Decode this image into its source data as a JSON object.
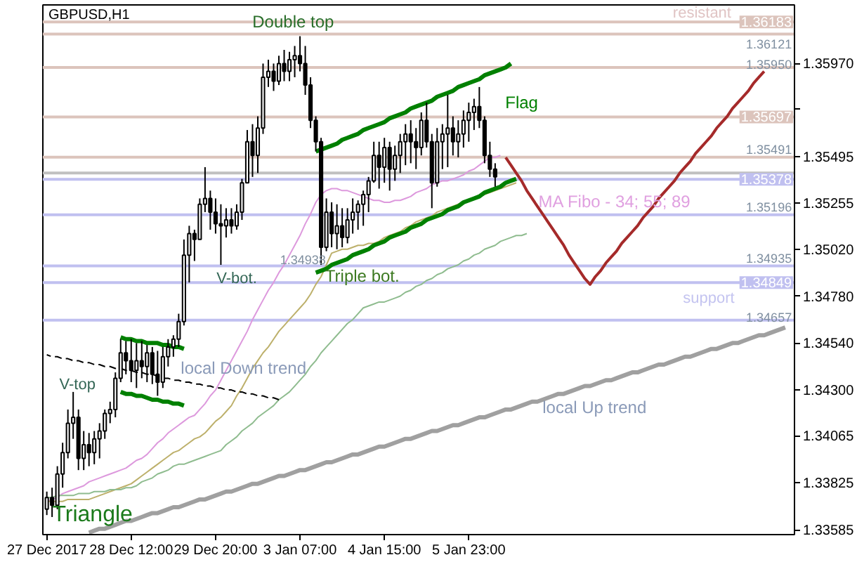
{
  "chart_data": {
    "type": "candlestick",
    "title": "GBPUSD,H1",
    "color": "#000000",
    "categories": [
      "27 Dec 2017",
      null,
      null,
      null,
      null,
      null,
      null,
      null,
      null,
      null,
      null,
      null,
      null,
      null,
      null,
      null,
      "28 Dec 12:00",
      null,
      null,
      null,
      null,
      null,
      null,
      null,
      null,
      null,
      null,
      null,
      null,
      null,
      null,
      null,
      "29 Dec 20:00",
      null,
      null,
      null,
      null,
      null,
      null,
      null,
      null,
      null,
      null,
      null,
      null,
      null,
      null,
      null,
      "3 Jan 07:00",
      null,
      null,
      null,
      null,
      null,
      null,
      null,
      null,
      null,
      null,
      null,
      null,
      null,
      null,
      null,
      "4 Jan 15:00",
      null,
      null,
      null,
      null,
      null,
      null,
      null,
      null,
      null,
      null,
      null,
      null,
      null,
      null,
      null,
      "5 Jan 23:00",
      null,
      null,
      null,
      null,
      null,
      null,
      null,
      null,
      null,
      null,
      null,
      null,
      null,
      null,
      null,
      null,
      null,
      null,
      null,
      null,
      null,
      null,
      null,
      null,
      null,
      null,
      null,
      null,
      null,
      null,
      null,
      null,
      null,
      null,
      null,
      null,
      null,
      null,
      null,
      null,
      null,
      null,
      null,
      null,
      null,
      null,
      null,
      null,
      null,
      null,
      null,
      null,
      null,
      null,
      null,
      null,
      null,
      null,
      null,
      null,
      null
    ],
    "ohlc": [
      [
        1.3369,
        1.3378,
        1.3366,
        1.3375
      ],
      [
        1.3375,
        1.338,
        1.3365,
        1.3371
      ],
      [
        1.3371,
        1.3391,
        1.3369,
        1.3387
      ],
      [
        1.3387,
        1.3403,
        1.338,
        1.3398
      ],
      [
        1.3398,
        1.342,
        1.3395,
        1.3413
      ],
      [
        1.3413,
        1.3429,
        1.3405,
        1.3416
      ],
      [
        1.3416,
        1.342,
        1.3389,
        1.3395
      ],
      [
        1.3395,
        1.3409,
        1.3389,
        1.3402
      ],
      [
        1.3402,
        1.3408,
        1.3391,
        1.3398
      ],
      [
        1.3398,
        1.3409,
        1.3392,
        1.3405
      ],
      [
        1.3405,
        1.3413,
        1.3395,
        1.3409
      ],
      [
        1.3409,
        1.342,
        1.3405,
        1.3418
      ],
      [
        1.3418,
        1.3424,
        1.3413,
        1.342
      ],
      [
        1.342,
        1.3439,
        1.3416,
        1.3436
      ],
      [
        1.3436,
        1.3456,
        1.3434,
        1.3449
      ],
      [
        1.3449,
        1.3455,
        1.3438,
        1.3445
      ],
      [
        1.3445,
        1.3456,
        1.3434,
        1.344
      ],
      [
        1.344,
        1.3454,
        1.3431,
        1.3445
      ],
      [
        1.3445,
        1.3455,
        1.3436,
        1.3442
      ],
      [
        1.3442,
        1.3453,
        1.3434,
        1.3449
      ],
      [
        1.3449,
        1.3452,
        1.3433,
        1.3438
      ],
      [
        1.3438,
        1.345,
        1.3427,
        1.3434
      ],
      [
        1.3434,
        1.3452,
        1.3431,
        1.3447
      ],
      [
        1.3447,
        1.3456,
        1.3442,
        1.3452
      ],
      [
        1.3452,
        1.3458,
        1.3447,
        1.3456
      ],
      [
        1.3456,
        1.3469,
        1.3452,
        1.3465
      ],
      [
        1.3465,
        1.3507,
        1.3463,
        1.3499
      ],
      [
        1.3499,
        1.3514,
        1.3485,
        1.351
      ],
      [
        1.351,
        1.3512,
        1.3496,
        1.3507
      ],
      [
        1.3507,
        1.3528,
        1.3507,
        1.3525
      ],
      [
        1.3525,
        1.3544,
        1.3521,
        1.3528
      ],
      [
        1.3528,
        1.3532,
        1.3512,
        1.3521
      ],
      [
        1.3521,
        1.3528,
        1.351,
        1.3515
      ],
      [
        1.3515,
        1.3525,
        1.3494,
        1.3514
      ],
      [
        1.3514,
        1.3523,
        1.3508,
        1.3517
      ],
      [
        1.3517,
        1.3523,
        1.351,
        1.3514
      ],
      [
        1.3514,
        1.3525,
        1.3512,
        1.3521
      ],
      [
        1.3521,
        1.3538,
        1.3517,
        1.3536
      ],
      [
        1.3536,
        1.3563,
        1.3536,
        1.3557
      ],
      [
        1.3557,
        1.3566,
        1.3539,
        1.355
      ],
      [
        1.355,
        1.357,
        1.3541,
        1.3564
      ],
      [
        1.3564,
        1.3597,
        1.3561,
        1.359
      ],
      [
        1.359,
        1.3599,
        1.3585,
        1.3593
      ],
      [
        1.3593,
        1.3597,
        1.3583,
        1.3588
      ],
      [
        1.3588,
        1.3601,
        1.3586,
        1.3597
      ],
      [
        1.3597,
        1.3604,
        1.3588,
        1.3593
      ],
      [
        1.3593,
        1.3603,
        1.3588,
        1.3599
      ],
      [
        1.3599,
        1.3606,
        1.359,
        1.3601
      ],
      [
        1.3601,
        1.3611,
        1.3593,
        1.3597
      ],
      [
        1.3597,
        1.3606,
        1.3581,
        1.3586
      ],
      [
        1.3586,
        1.359,
        1.3564,
        1.3568
      ],
      [
        1.3568,
        1.357,
        1.3552,
        1.3557
      ],
      [
        1.3557,
        1.3559,
        1.3494,
        1.3503
      ],
      [
        1.3503,
        1.3528,
        1.3501,
        1.3521
      ],
      [
        1.3521,
        1.3526,
        1.3503,
        1.351
      ],
      [
        1.351,
        1.3525,
        1.3502,
        1.3514
      ],
      [
        1.3514,
        1.3523,
        1.3503,
        1.3508
      ],
      [
        1.3508,
        1.3523,
        1.3505,
        1.3517
      ],
      [
        1.3517,
        1.3528,
        1.351,
        1.3521
      ],
      [
        1.3521,
        1.3527,
        1.3512,
        1.3525
      ],
      [
        1.3525,
        1.3532,
        1.3514,
        1.353
      ],
      [
        1.353,
        1.3539,
        1.3521,
        1.3537
      ],
      [
        1.3537,
        1.3557,
        1.3536,
        1.355
      ],
      [
        1.355,
        1.3557,
        1.3533,
        1.3544
      ],
      [
        1.3544,
        1.3559,
        1.3536,
        1.3554
      ],
      [
        1.3554,
        1.3557,
        1.3532,
        1.3543
      ],
      [
        1.3543,
        1.3555,
        1.3537,
        1.355
      ],
      [
        1.355,
        1.3561,
        1.3541,
        1.3557
      ],
      [
        1.3557,
        1.3566,
        1.3545,
        1.3561
      ],
      [
        1.3561,
        1.3568,
        1.3546,
        1.3557
      ],
      [
        1.3557,
        1.3564,
        1.3543,
        1.3554
      ],
      [
        1.3554,
        1.3572,
        1.355,
        1.3568
      ],
      [
        1.3568,
        1.3577,
        1.3554,
        1.3557
      ],
      [
        1.3557,
        1.3561,
        1.3523,
        1.3536
      ],
      [
        1.3536,
        1.3564,
        1.3534,
        1.3557
      ],
      [
        1.3557,
        1.3566,
        1.3543,
        1.3561
      ],
      [
        1.3561,
        1.3581,
        1.3544,
        1.3564
      ],
      [
        1.3564,
        1.357,
        1.355,
        1.3557
      ],
      [
        1.3557,
        1.3568,
        1.3549,
        1.3561
      ],
      [
        1.3561,
        1.3573,
        1.3554,
        1.3568
      ],
      [
        1.3568,
        1.3577,
        1.3557,
        1.3572
      ],
      [
        1.3572,
        1.3579,
        1.3563,
        1.3575
      ],
      [
        1.3575,
        1.3585,
        1.3564,
        1.3568
      ],
      [
        1.3568,
        1.357,
        1.3546,
        1.355
      ],
      [
        1.355,
        1.3557,
        1.3539,
        1.3543
      ],
      [
        1.3543,
        1.3546,
        1.3534,
        1.3539
      ],
      null,
      null,
      null,
      null,
      null,
      null,
      null,
      null,
      null,
      null,
      null,
      null,
      null,
      null,
      null,
      null,
      null,
      null,
      null,
      null,
      null,
      null,
      null,
      null,
      null,
      null,
      null,
      null,
      null,
      null,
      null,
      null,
      null,
      null,
      null,
      null,
      null,
      null,
      null,
      null,
      null,
      null,
      null,
      null,
      null,
      null,
      null,
      null,
      null,
      null,
      null,
      null,
      null,
      null,
      null,
      null
    ],
    "series": [
      {
        "type": "line",
        "color": "#dd99dd",
        "values": [
          1.3373,
          1.3374,
          1.3375,
          1.3377,
          1.3378,
          1.3379,
          1.338,
          1.3381,
          1.3383,
          1.3384,
          1.3385,
          1.3386,
          1.3387,
          1.3388,
          1.3389,
          1.339,
          1.3392,
          1.3394,
          1.3395,
          1.3397,
          1.34,
          1.3403,
          1.3405,
          1.3408,
          1.341,
          1.3412,
          1.3414,
          1.3416,
          1.3417,
          1.342,
          1.3423,
          1.3427,
          1.343,
          1.3435,
          1.344,
          1.3445,
          1.345,
          1.3455,
          1.346,
          1.3466,
          1.3471,
          1.3476,
          1.3481,
          1.3485,
          1.349,
          1.3494,
          1.3499,
          1.3504,
          1.3509,
          1.3515,
          1.352,
          1.3526,
          1.353,
          1.3532,
          1.3533,
          1.3533,
          1.3532,
          1.3532,
          1.3531,
          1.353,
          1.3529,
          1.3528,
          1.3527,
          1.3527,
          1.3526,
          1.3526,
          1.3527,
          1.3527,
          1.3528,
          1.3529,
          1.3531,
          1.3532,
          1.3533,
          1.3535,
          1.3536,
          1.3537,
          1.3537,
          1.3538,
          1.3539,
          1.354,
          1.3542,
          1.3543,
          1.3545,
          1.3547,
          1.3549,
          1.3549,
          1.355,
          null,
          null,
          null,
          null,
          null,
          null,
          null,
          null,
          null,
          null,
          null,
          null,
          null,
          null,
          null,
          null,
          null,
          null,
          null,
          null,
          null,
          null,
          null,
          null,
          null,
          null,
          null,
          null,
          null,
          null,
          null,
          null,
          null,
          null,
          null,
          null,
          null,
          null,
          null,
          null,
          null,
          null,
          null,
          null,
          null,
          null,
          null,
          null,
          null,
          null,
          null,
          null,
          null,
          null,
          null
        ]
      },
      {
        "type": "line",
        "color": "#bdb06b",
        "values": [
          1.3373,
          1.3373,
          1.3373,
          1.3373,
          1.3374,
          1.3374,
          1.3374,
          1.3374,
          1.3374,
          1.3375,
          1.3376,
          1.3377,
          1.3378,
          1.3379,
          1.338,
          1.3381,
          1.3382,
          1.3384,
          1.3386,
          1.3388,
          1.339,
          1.3392,
          1.3394,
          1.3396,
          1.3398,
          1.3399,
          1.3401,
          1.3403,
          1.3405,
          1.3406,
          1.3408,
          1.3411,
          1.3414,
          1.3416,
          1.3419,
          1.3422,
          1.3427,
          1.3431,
          1.3436,
          1.3441,
          1.3445,
          1.3449,
          1.3452,
          1.3456,
          1.346,
          1.3463,
          1.3466,
          1.3469,
          1.3472,
          1.3475,
          1.3479,
          1.3484,
          1.3488,
          1.3494,
          1.35,
          1.3501,
          1.3502,
          1.3502,
          1.3503,
          1.3504,
          1.3504,
          1.3505,
          1.3505,
          1.3506,
          1.3508,
          1.3509,
          1.351,
          1.3511,
          1.3513,
          1.3514,
          1.3516,
          1.3517,
          1.3518,
          1.3519,
          1.3521,
          1.3522,
          1.3523,
          1.3524,
          1.3525,
          1.3526,
          1.3527,
          1.3528,
          1.3529,
          1.353,
          1.3531,
          1.3532,
          1.3533,
          1.3534,
          1.3535,
          1.3536,
          null,
          null,
          null,
          null,
          null,
          null,
          null,
          null,
          null,
          null,
          null,
          null,
          null,
          null,
          null,
          null,
          null,
          null,
          null,
          null,
          null,
          null,
          null,
          null,
          null,
          null,
          null,
          null,
          null,
          null,
          null,
          null,
          null,
          null,
          null,
          null,
          null,
          null,
          null,
          null,
          null,
          null,
          null,
          null,
          null,
          null,
          null,
          null,
          null,
          null,
          null,
          null
        ]
      },
      {
        "type": "line",
        "color": "#8fbc8f",
        "values": [
          1.3375,
          1.3375,
          1.3376,
          1.3376,
          1.3376,
          1.3376,
          1.3377,
          1.3377,
          1.3377,
          1.3378,
          1.3378,
          1.3378,
          1.3379,
          1.3379,
          1.3379,
          1.338,
          1.338,
          1.3381,
          1.3383,
          1.3384,
          1.3385,
          1.3387,
          1.3388,
          1.3389,
          1.3391,
          1.3392,
          1.3392,
          1.3393,
          1.3394,
          1.3395,
          1.3396,
          1.3397,
          1.3398,
          1.3399,
          1.3402,
          1.3404,
          1.3406,
          1.3409,
          1.3411,
          1.3413,
          1.3416,
          1.3418,
          1.342,
          1.3422,
          1.3425,
          1.3427,
          1.3429,
          1.3432,
          1.3435,
          1.3438,
          1.3442,
          1.3445,
          1.3449,
          1.3452,
          1.3455,
          1.3458,
          1.3461,
          1.3464,
          1.3466,
          1.3469,
          1.3472,
          1.3473,
          1.3474,
          1.3475,
          1.3475,
          1.3476,
          1.3477,
          1.3478,
          1.348,
          1.3481,
          1.3483,
          1.3484,
          1.3486,
          1.3487,
          1.3489,
          1.349,
          1.3492,
          1.3493,
          1.3494,
          1.3496,
          1.3497,
          1.3499,
          1.35,
          1.3502,
          1.3503,
          1.3504,
          1.3506,
          1.3507,
          1.3508,
          1.3509,
          1.3509,
          1.351,
          null,
          null,
          null,
          null,
          null,
          null,
          null,
          null,
          null,
          null,
          null,
          null,
          null,
          null,
          null,
          null,
          null,
          null,
          null,
          null,
          null,
          null,
          null,
          null,
          null,
          null,
          null,
          null,
          null,
          null,
          null,
          null,
          null,
          null,
          null,
          null,
          null,
          null,
          null,
          null,
          null,
          null,
          null,
          null,
          null,
          null,
          null,
          null,
          null,
          null
        ]
      },
      {
        "type": "line",
        "color": "#008000",
        "values": [
          null,
          null,
          null,
          null,
          null,
          null,
          null,
          null,
          null,
          null,
          null,
          null,
          null,
          null,
          null,
          null,
          null,
          null,
          null,
          null,
          null,
          null,
          null,
          null,
          null,
          null,
          null,
          null,
          null,
          null,
          null,
          null,
          null,
          null,
          null,
          null,
          null,
          null,
          null,
          null,
          null,
          null,
          null,
          null,
          null,
          null,
          null,
          null,
          null,
          null,
          null,
          1.3552,
          1.3553,
          1.3554,
          1.3555,
          1.3556,
          1.3558,
          1.3559,
          1.356,
          1.3561,
          1.3563,
          1.3564,
          1.3565,
          1.3566,
          1.3567,
          1.3569,
          1.357,
          1.3571,
          1.3572,
          1.3574,
          1.3575,
          1.3576,
          1.3577,
          1.3578,
          1.358,
          1.3581,
          1.3582,
          1.3583,
          1.3585,
          1.3586,
          1.3587,
          1.3588,
          1.3589,
          1.3591,
          1.3592,
          1.3593,
          1.3594,
          1.3595,
          1.3597,
          null,
          null,
          null,
          null,
          null,
          null,
          null,
          null,
          null,
          null,
          null,
          null,
          null,
          null,
          null,
          null,
          null,
          null,
          null,
          null,
          null,
          null,
          null,
          null,
          null,
          null,
          null,
          null,
          null,
          null,
          null,
          null,
          null,
          null,
          null,
          null,
          null,
          null,
          null,
          null,
          null,
          null,
          null,
          null,
          null,
          null,
          null,
          null,
          null,
          null,
          null,
          null,
          null
        ]
      },
      {
        "type": "line",
        "color": "#008000",
        "values": [
          null,
          null,
          null,
          null,
          null,
          null,
          null,
          null,
          null,
          null,
          null,
          null,
          null,
          null,
          null,
          null,
          null,
          null,
          null,
          null,
          null,
          null,
          null,
          null,
          null,
          null,
          null,
          null,
          null,
          null,
          null,
          null,
          null,
          null,
          null,
          null,
          null,
          null,
          null,
          null,
          null,
          null,
          null,
          null,
          null,
          null,
          null,
          null,
          null,
          null,
          null,
          1.349,
          1.3491,
          1.3492,
          1.3494,
          1.3495,
          1.3496,
          1.3497,
          1.3499,
          1.35,
          1.3501,
          1.3502,
          1.3504,
          1.3505,
          1.3506,
          1.3508,
          1.3509,
          1.351,
          1.3511,
          1.3513,
          1.3514,
          1.3515,
          1.3517,
          1.3518,
          1.3519,
          1.352,
          1.3522,
          1.3523,
          1.3524,
          1.3526,
          1.3527,
          1.3528,
          1.3529,
          1.3531,
          1.3532,
          1.3533,
          1.3534,
          1.3536,
          1.3537,
          1.3538,
          null,
          null,
          null,
          null,
          null,
          null,
          null,
          null,
          null,
          null,
          null,
          null,
          null,
          null,
          null,
          null,
          null,
          null,
          null,
          null,
          null,
          null,
          null,
          null,
          null,
          null,
          null,
          null,
          null,
          null,
          null,
          null,
          null,
          null,
          null,
          null,
          null,
          null,
          null,
          null,
          null,
          null,
          null,
          null,
          null,
          null,
          null,
          null,
          null,
          null,
          null,
          null
        ]
      },
      {
        "type": "line",
        "color": "#008000",
        "values": [
          null,
          null,
          null,
          null,
          null,
          null,
          null,
          null,
          null,
          null,
          null,
          null,
          null,
          null,
          1.3457,
          1.3456,
          1.3456,
          1.3455,
          1.3455,
          1.3454,
          1.3454,
          1.3454,
          1.3453,
          1.3453,
          1.3452,
          1.3452,
          1.3451,
          null,
          null,
          null,
          null,
          null,
          null,
          null,
          null,
          null,
          null,
          null,
          null,
          null,
          null,
          null,
          null,
          null,
          null,
          null,
          null,
          null,
          null,
          null,
          null,
          null,
          null,
          null,
          null,
          null,
          null,
          null,
          null,
          null,
          null,
          null,
          null,
          null,
          null,
          null,
          null,
          null,
          null,
          null,
          null,
          null,
          null,
          null,
          null,
          null,
          null,
          null,
          null,
          null,
          null,
          null,
          null,
          null,
          null,
          null,
          null,
          null,
          null,
          null,
          null,
          null,
          null,
          null,
          null,
          null,
          null,
          null,
          null,
          null,
          null,
          null,
          null,
          null,
          null,
          null,
          null,
          null,
          null,
          null,
          null,
          null,
          null,
          null,
          null,
          null,
          null,
          null,
          null,
          null,
          null,
          null,
          null,
          null,
          null,
          null,
          null,
          null,
          null,
          null,
          null,
          null,
          null,
          null,
          null,
          null,
          null,
          null,
          null,
          null,
          null,
          null
        ]
      },
      {
        "type": "line",
        "color": "#008000",
        "values": [
          null,
          null,
          null,
          null,
          null,
          null,
          null,
          null,
          null,
          null,
          null,
          null,
          null,
          null,
          1.3429,
          1.3428,
          1.3428,
          1.3427,
          1.3427,
          1.3426,
          1.3425,
          1.3425,
          1.3424,
          1.3424,
          1.3423,
          1.3423,
          1.3422,
          null,
          null,
          null,
          null,
          null,
          null,
          null,
          null,
          null,
          null,
          null,
          null,
          null,
          null,
          null,
          null,
          null,
          null,
          null,
          null,
          null,
          null,
          null,
          null,
          null,
          null,
          null,
          null,
          null,
          null,
          null,
          null,
          null,
          null,
          null,
          null,
          null,
          null,
          null,
          null,
          null,
          null,
          null,
          null,
          null,
          null,
          null,
          null,
          null,
          null,
          null,
          null,
          null,
          null,
          null,
          null,
          null,
          null,
          null,
          null,
          null,
          null,
          null,
          null,
          null,
          null,
          null,
          null,
          null,
          null,
          null,
          null,
          null,
          null,
          null,
          null,
          null,
          null,
          null,
          null,
          null,
          null,
          null,
          null,
          null,
          null,
          null,
          null,
          null,
          null,
          null,
          null,
          null,
          null,
          null,
          null,
          null,
          null,
          null,
          null,
          null,
          null,
          null,
          null,
          null,
          null,
          null,
          null,
          null,
          null,
          null,
          null,
          null,
          null,
          null
        ]
      },
      {
        "type": "line",
        "color": "#000000",
        "line_style": "dashed",
        "values": [
          1.3448,
          1.3447,
          1.3447,
          1.3446,
          1.3446,
          1.3445,
          1.3445,
          1.3444,
          1.3444,
          1.3443,
          1.3443,
          1.3442,
          1.3442,
          1.3441,
          1.3441,
          1.344,
          1.344,
          1.3439,
          1.3439,
          1.3438,
          1.3438,
          1.3437,
          1.3436,
          1.3436,
          1.3435,
          1.3435,
          1.3434,
          1.3434,
          1.3433,
          1.3433,
          1.3432,
          1.3432,
          1.3431,
          1.3431,
          1.343,
          1.343,
          1.3429,
          1.3429,
          1.3428,
          1.3428,
          1.3427,
          1.3427,
          1.3426,
          1.3426,
          1.3425,
          null,
          null,
          null,
          null,
          null,
          null,
          null,
          null,
          null,
          null,
          null,
          null,
          null,
          null,
          null,
          null,
          null,
          null,
          null,
          null,
          null,
          null,
          null,
          null,
          null,
          null,
          null,
          null,
          null,
          null,
          null,
          null,
          null,
          null,
          null,
          null,
          null,
          null,
          null,
          null,
          null,
          null,
          null,
          null,
          null,
          null,
          null,
          null,
          null,
          null,
          null,
          null,
          null,
          null,
          null,
          null,
          null,
          null,
          null,
          null,
          null,
          null,
          null,
          null,
          null,
          null,
          null,
          null,
          null,
          null,
          null,
          null,
          null,
          null,
          null,
          null,
          null,
          null,
          null,
          null,
          null,
          null,
          null,
          null,
          null,
          null,
          null,
          null,
          null,
          null,
          null,
          null,
          null,
          null,
          null,
          null,
          null
        ]
      },
      {
        "type": "line",
        "color": "#a0a0a0",
        "values": [
          null,
          null,
          null,
          null,
          null,
          null,
          null,
          null,
          1.3357,
          1.3358,
          1.3359,
          1.3359,
          1.336,
          1.3361,
          1.3362,
          1.3363,
          1.3363,
          1.3364,
          1.3365,
          1.3366,
          1.3367,
          1.3367,
          1.3368,
          1.3369,
          1.337,
          1.337,
          1.3371,
          1.3372,
          1.3373,
          1.3374,
          1.3374,
          1.3375,
          1.3376,
          1.3377,
          1.3378,
          1.3378,
          1.3379,
          1.338,
          1.3381,
          1.3382,
          1.3382,
          1.3383,
          1.3384,
          1.3385,
          1.3386,
          1.3386,
          1.3387,
          1.3388,
          1.3389,
          1.3389,
          1.339,
          1.3391,
          1.3392,
          1.3393,
          1.3393,
          1.3394,
          1.3395,
          1.3396,
          1.3397,
          1.3397,
          1.3398,
          1.3399,
          1.34,
          1.3401,
          1.3401,
          1.3402,
          1.3403,
          1.3404,
          1.3405,
          1.3405,
          1.3406,
          1.3407,
          1.3408,
          1.3409,
          1.3409,
          1.341,
          1.3411,
          1.3412,
          1.3412,
          1.3413,
          1.3414,
          1.3415,
          1.3416,
          1.3416,
          1.3417,
          1.3418,
          1.3419,
          1.342,
          1.342,
          1.3421,
          1.3422,
          1.3423,
          1.3424,
          1.3424,
          1.3425,
          1.3426,
          1.3427,
          1.3428,
          1.3428,
          1.3429,
          1.343,
          1.3431,
          1.3432,
          1.3432,
          1.3433,
          1.3434,
          1.3435,
          1.3435,
          1.3436,
          1.3437,
          1.3438,
          1.3439,
          1.3439,
          1.344,
          1.3441,
          1.3442,
          1.3443,
          1.3443,
          1.3444,
          1.3445,
          1.3446,
          1.3447,
          1.3447,
          1.3448,
          1.3449,
          1.345,
          1.3451,
          1.3451,
          1.3452,
          1.3453,
          1.3454,
          1.3454,
          1.3455,
          1.3456,
          1.3457,
          1.3458,
          1.3458,
          1.3459,
          1.346,
          1.3461,
          1.3462,
          null
        ]
      },
      {
        "type": "line",
        "color": "#a52a2a",
        "values": [
          null,
          null,
          null,
          null,
          null,
          null,
          null,
          null,
          null,
          null,
          null,
          null,
          null,
          null,
          null,
          null,
          null,
          null,
          null,
          null,
          null,
          null,
          null,
          null,
          null,
          null,
          null,
          null,
          null,
          null,
          null,
          null,
          null,
          null,
          null,
          null,
          null,
          null,
          null,
          null,
          null,
          null,
          null,
          null,
          null,
          null,
          null,
          null,
          null,
          null,
          null,
          null,
          null,
          null,
          null,
          null,
          null,
          null,
          null,
          null,
          null,
          null,
          null,
          null,
          null,
          null,
          null,
          null,
          null,
          null,
          null,
          null,
          null,
          null,
          null,
          null,
          null,
          null,
          null,
          null,
          null,
          null,
          null,
          null,
          null,
          null,
          null,
          1.3549,
          1.3545,
          1.3541,
          1.3537,
          1.3532,
          1.3528,
          1.3524,
          1.352,
          1.3516,
          1.3512,
          1.3508,
          1.3504,
          1.3499,
          1.3495,
          1.3491,
          1.3487,
          1.3484,
          1.3488,
          1.3491,
          1.3495,
          1.3498,
          1.3501,
          1.3505,
          1.3508,
          1.3511,
          1.3514,
          1.3518,
          1.3521,
          1.3524,
          1.3528,
          1.3531,
          1.3534,
          1.3537,
          1.3541,
          1.3544,
          1.3547,
          1.3551,
          1.3554,
          1.3557,
          1.356,
          1.3564,
          1.3567,
          1.357,
          1.3574,
          1.3577,
          1.358,
          1.3583,
          1.3587,
          1.359,
          1.3593,
          null,
          null,
          null,
          null,
          null
        ]
      }
    ],
    "ref_lines": [
      {
        "axis": "y",
        "value": 1.36183,
        "label": "1.36183",
        "color": "#dcc4bc"
      },
      {
        "axis": "y",
        "value": 1.36121,
        "color": "#dcc4bc"
      },
      {
        "axis": "y",
        "value": 1.3595,
        "color": "#dcc4bc"
      },
      {
        "axis": "y",
        "value": 1.35697,
        "label": "1.35697",
        "color": "#dcc4bc"
      },
      {
        "axis": "y",
        "value": 1.35491,
        "color": "#dcc4bc"
      },
      {
        "axis": "y",
        "value": 1.3541,
        "color": "#c0c0c0"
      },
      {
        "axis": "y",
        "value": 1.35378,
        "label": "1.35378",
        "color": "#c0c0f0"
      },
      {
        "axis": "y",
        "value": 1.35196,
        "color": "#c0c0f0"
      },
      {
        "axis": "y",
        "value": 1.34935,
        "color": "#c0c0f0"
      },
      {
        "axis": "y",
        "value": 1.34849,
        "label": "1.34849",
        "color": "#c0c0f0"
      },
      {
        "axis": "y",
        "value": 1.34657,
        "color": "#c0c0f0"
      }
    ],
    "annotations": [
      "Double top",
      "Flag",
      "V-bot.",
      "V-top",
      {
        "text": "Triple bot.",
        "y": 1.3494
      },
      "1.34938",
      {
        "text": "local Down trend",
        "y": 1.3429
      },
      "local  Up trend",
      "Triangle",
      "MA Fibo - 34; 55; 89",
      "resistant",
      "support",
      {
        "text": "1.36121",
        "y": 1.36121
      },
      "1.35950",
      "1.35491",
      "1.35196",
      "1.34935",
      "1.34657"
    ],
    "ylim": [
      1.3356,
      1.3627
    ],
    "yticks": [
      {
        "value": 1.3597,
        "label": "1.35970"
      },
      {
        "value": 1.35735,
        "label": null
      },
      {
        "value": 1.35495,
        "label": "1.35495"
      },
      {
        "value": 1.35255,
        "label": "1.35255"
      },
      {
        "value": 1.3502,
        "label": "1.35020"
      },
      {
        "value": 1.3478,
        "label": "1.34780"
      },
      {
        "value": 1.3454,
        "label": "1.34540"
      },
      {
        "value": 1.343,
        "label": "1.34300"
      },
      {
        "value": 1.34065,
        "label": "1.34065"
      },
      {
        "value": 1.33825,
        "label": "1.33825"
      },
      {
        "value": 1.33585,
        "label": "1.33585"
      }
    ],
    "grid": false
  }
}
